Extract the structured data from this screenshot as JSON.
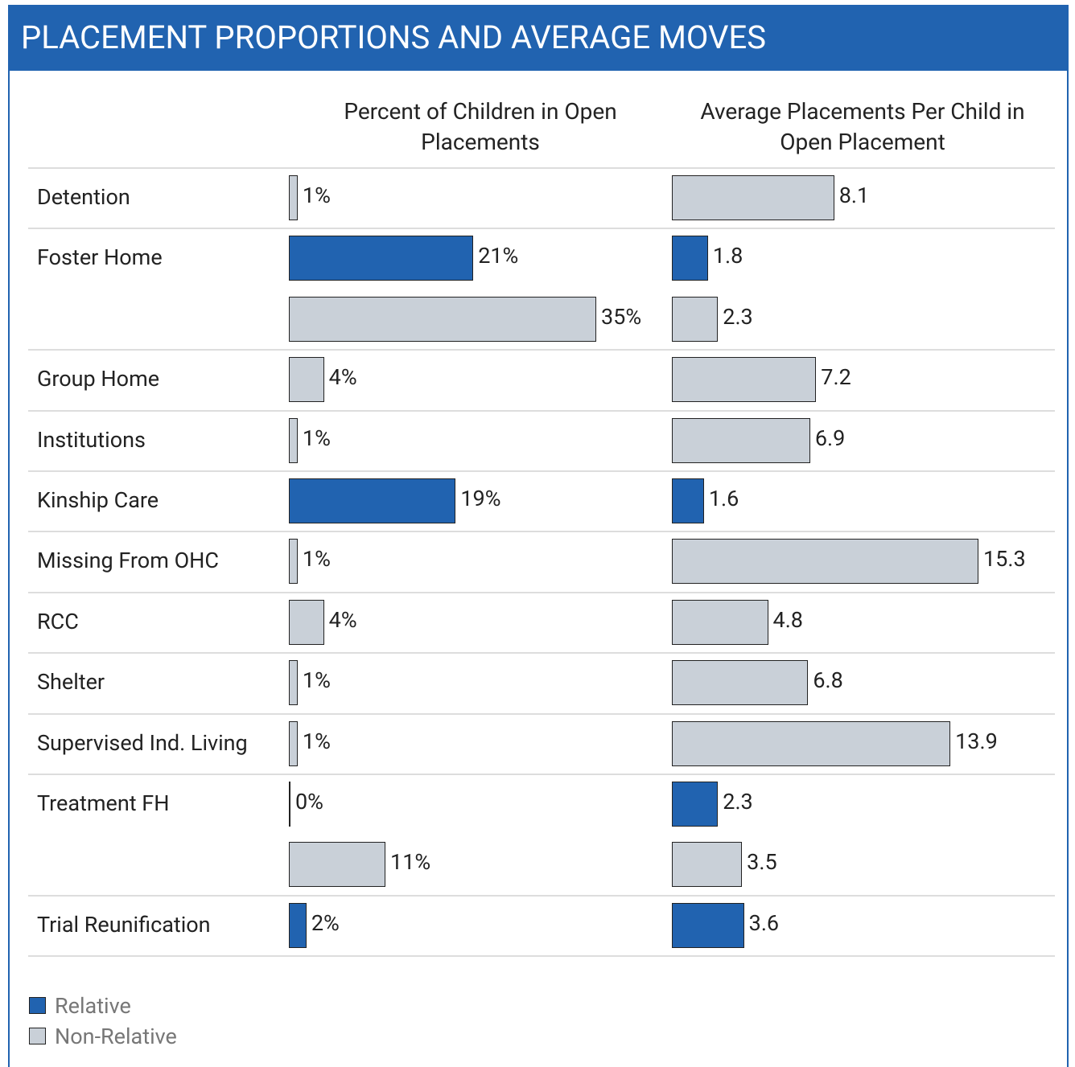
{
  "chart_data": {
    "type": "bar",
    "title": "PLACEMENT PROPORTIONS AND AVERAGE MOVES",
    "categories": [
      "Detention",
      "Foster Home",
      null,
      "Group Home",
      "Institutions",
      "Kinship Care",
      "Missing From OHC",
      "RCC",
      "Shelter",
      "Supervised Ind. Living",
      "Treatment FH",
      null,
      "Trial Reunification"
    ],
    "colors": [
      "#c9d0d8",
      "#2163b0",
      "#c9d0d8",
      "#c9d0d8",
      "#c9d0d8",
      "#2163b0",
      "#c9d0d8",
      "#c9d0d8",
      "#c9d0d8",
      "#c9d0d8",
      "#2163b0",
      "#c9d0d8",
      "#2163b0"
    ],
    "series": [
      {
        "name": "Percent of Children in Open Placements",
        "values": [
          1,
          21,
          35,
          4,
          1,
          19,
          1,
          4,
          1,
          1,
          0,
          11,
          2
        ],
        "value_labels": [
          "1%",
          "21%",
          "35%",
          "4%",
          "1%",
          "19%",
          "1%",
          "4%",
          "1%",
          "1%",
          "0%",
          "11%",
          "2%"
        ]
      },
      {
        "name": "Average Placements Per Child in Open Placement",
        "values": [
          8.1,
          1.8,
          2.3,
          7.2,
          6.9,
          1.6,
          15.3,
          4.8,
          6.8,
          13.9,
          2.3,
          3.5,
          3.6
        ]
      }
    ],
    "legend": [
      {
        "name": "Relative",
        "color": "#2163b0"
      },
      {
        "name": "Non-Relative",
        "color": "#c9d0d8"
      }
    ]
  }
}
